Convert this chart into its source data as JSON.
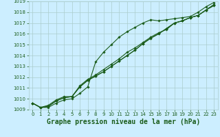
{
  "title": "Graphe pression niveau de la mer (hPa)",
  "background_color": "#cceeff",
  "grid_color": "#aacccc",
  "line_color": "#1a5c1a",
  "xlim": [
    -0.5,
    23.5
  ],
  "ylim": [
    1009,
    1019
  ],
  "xticks": [
    0,
    1,
    2,
    3,
    4,
    5,
    6,
    7,
    8,
    9,
    10,
    11,
    12,
    13,
    14,
    15,
    16,
    17,
    18,
    19,
    20,
    21,
    22,
    23
  ],
  "yticks": [
    1009,
    1010,
    1011,
    1012,
    1013,
    1014,
    1015,
    1016,
    1017,
    1018,
    1019
  ],
  "series": [
    [
      1009.6,
      1009.2,
      1009.2,
      1009.6,
      1009.9,
      1010.0,
      1010.5,
      1011.1,
      1013.4,
      1014.3,
      1015.0,
      1015.7,
      1016.2,
      1016.6,
      1017.0,
      1017.3,
      1017.2,
      1017.3,
      1017.4,
      1017.5,
      1017.6,
      1018.0,
      1018.5,
      1018.9
    ],
    [
      1009.6,
      1009.2,
      1009.3,
      1009.8,
      1010.1,
      1010.2,
      1011.1,
      1011.7,
      1012.1,
      1012.5,
      1013.0,
      1013.5,
      1014.0,
      1014.5,
      1015.1,
      1015.6,
      1016.0,
      1016.5,
      1017.0,
      1017.2,
      1017.5,
      1017.7,
      1018.2,
      1018.7
    ],
    [
      1009.6,
      1009.2,
      1009.3,
      1009.8,
      1010.1,
      1010.2,
      1011.1,
      1011.7,
      1012.1,
      1012.5,
      1013.0,
      1013.5,
      1014.0,
      1014.5,
      1015.1,
      1015.6,
      1016.0,
      1016.5,
      1017.0,
      1017.2,
      1017.5,
      1017.7,
      1018.2,
      1018.7
    ],
    [
      1009.6,
      1009.2,
      1009.4,
      1009.9,
      1010.2,
      1010.2,
      1011.2,
      1011.8,
      1012.2,
      1012.7,
      1013.2,
      1013.7,
      1014.3,
      1014.7,
      1015.2,
      1015.7,
      1016.1,
      1016.4,
      1017.0,
      1017.2,
      1017.5,
      1017.7,
      1018.2,
      1018.6
    ]
  ],
  "marker": "D",
  "markersize": 1.8,
  "linewidth": 0.8,
  "title_fontsize": 7,
  "tick_fontsize": 5,
  "title_color": "#1a5c1a",
  "tick_color": "#1a5c1a"
}
